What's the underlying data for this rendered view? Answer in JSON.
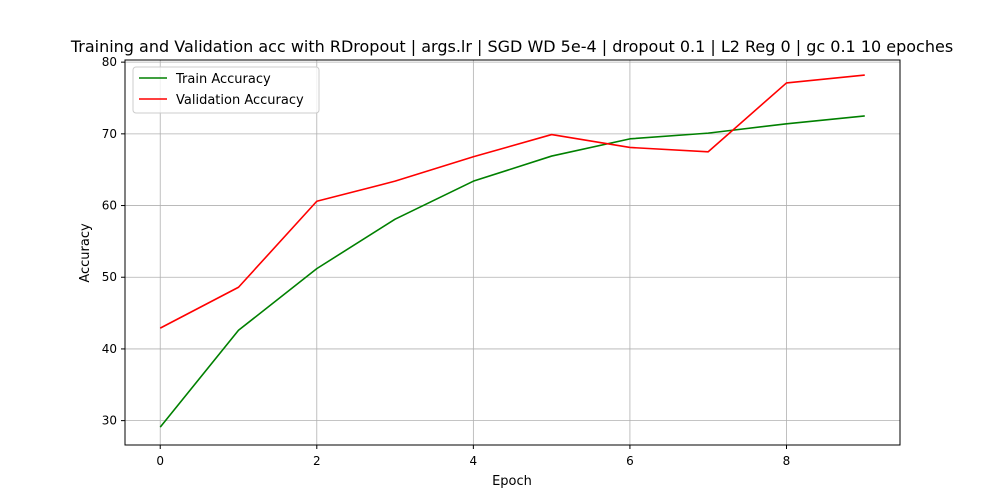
{
  "chart_data": {
    "type": "line",
    "title": "Training and Validation acc with RDropout | args.lr | SGD WD 5e-4 | dropout 0.1 | L2 Reg 0 | gc 0.1 10 epoches",
    "xlabel": "Epoch",
    "ylabel": "Accuracy",
    "x": [
      0,
      1,
      2,
      3,
      4,
      5,
      6,
      7,
      8,
      9
    ],
    "xlim": [
      -0.45,
      9.45
    ],
    "ylim": [
      26.6,
      80.3
    ],
    "xticks": [
      0,
      2,
      4,
      6,
      8
    ],
    "yticks": [
      30,
      40,
      50,
      60,
      70,
      80
    ],
    "grid": true,
    "legend_position": "top-left",
    "series": [
      {
        "name": "Train Accuracy",
        "color": "#008000",
        "values": [
          29.1,
          42.6,
          51.2,
          58.1,
          63.4,
          66.9,
          69.3,
          70.1,
          71.4,
          72.5
        ]
      },
      {
        "name": "Validation Accuracy",
        "color": "#ff0000",
        "values": [
          42.9,
          48.6,
          60.6,
          63.4,
          66.8,
          69.9,
          68.1,
          67.5,
          77.1,
          78.2
        ]
      }
    ]
  }
}
